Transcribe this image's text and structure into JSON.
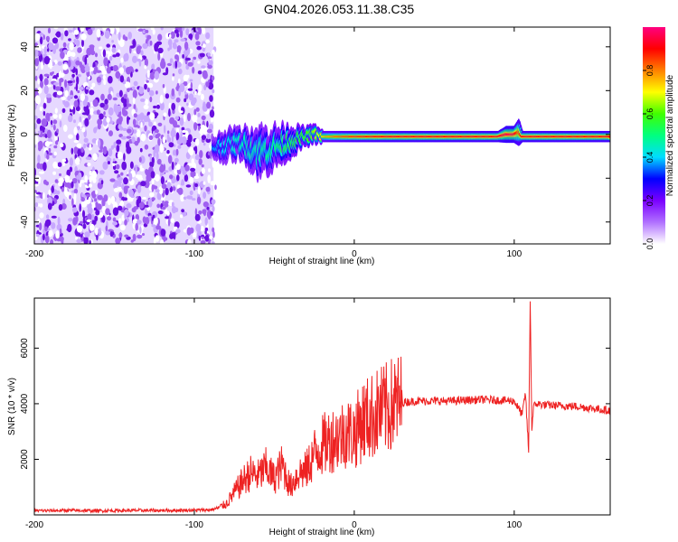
{
  "title": "GN04.2026.053.11.38.C35",
  "chart_data": [
    {
      "type": "heatmap",
      "name": "spectrogram",
      "xlabel": "Height of straight line (km)",
      "ylabel": "Frequency (Hz)",
      "xlim": [
        -200,
        160
      ],
      "ylim": [
        -50,
        49
      ],
      "x_ticks": [
        -200,
        -100,
        0,
        100
      ],
      "y_ticks": [
        -40,
        -20,
        0,
        20,
        40
      ],
      "grid": false,
      "noise_region_x": [
        -200,
        -88
      ],
      "signal_track": {
        "x": [
          -88,
          -80,
          -70,
          -60,
          -50,
          -40,
          -30,
          -25,
          -20,
          -10,
          0,
          20,
          40,
          60,
          80,
          90,
          95,
          100,
          103,
          105,
          120,
          160
        ],
        "freq": [
          -6,
          -5,
          -4,
          -8,
          -6,
          -3,
          -1,
          0,
          -1,
          -1,
          -1,
          -1,
          -1,
          -1,
          -1,
          -1,
          0,
          0,
          1,
          -1,
          -1,
          -1
        ],
        "spread": [
          4,
          5,
          5,
          8,
          7,
          5,
          3,
          3,
          2,
          2,
          2,
          2,
          2,
          2,
          2,
          2,
          3,
          3,
          5,
          2,
          2,
          2
        ],
        "amp": [
          0.3,
          0.35,
          0.4,
          0.4,
          0.45,
          0.5,
          0.55,
          0.6,
          0.7,
          0.8,
          0.85,
          0.9,
          0.9,
          0.9,
          0.9,
          0.9,
          0.95,
          0.95,
          0.8,
          0.9,
          0.9,
          0.9
        ]
      }
    },
    {
      "type": "line",
      "name": "snr",
      "xlabel": "Height of straight line (km)",
      "ylabel": "SNR (10 * v/v)",
      "xlim": [
        -200,
        160
      ],
      "ylim": [
        0,
        7800
      ],
      "x_ticks": [
        -200,
        -100,
        0,
        100
      ],
      "y_ticks": [
        2000,
        4000,
        6000
      ],
      "color": "#ee2222",
      "grid": false,
      "series": [
        {
          "name": "SNR",
          "x": [
            -200,
            -180,
            -160,
            -140,
            -120,
            -100,
            -90,
            -85,
            -80,
            -75,
            -70,
            -65,
            -60,
            -55,
            -50,
            -45,
            -40,
            -35,
            -30,
            -25,
            -20,
            -15,
            -10,
            -5,
            0,
            5,
            10,
            15,
            20,
            25,
            30,
            40,
            60,
            80,
            100,
            105,
            107,
            109,
            110,
            111,
            112,
            114,
            120,
            140,
            160
          ],
          "y": [
            150,
            160,
            150,
            160,
            160,
            170,
            180,
            250,
            400,
            800,
            1200,
            1500,
            1400,
            1700,
            1300,
            1800,
            1000,
            1500,
            1600,
            2200,
            2500,
            2700,
            2800,
            3000,
            2900,
            3400,
            3500,
            3700,
            3800,
            4000,
            4050,
            4100,
            4100,
            4150,
            4100,
            3600,
            4400,
            2300,
            7800,
            3000,
            3900,
            4000,
            3950,
            3900,
            3750
          ]
        }
      ]
    }
  ],
  "colorbar": {
    "label": "Normalized spectral amplitude",
    "range": [
      0,
      1
    ],
    "ticks": [
      0.0,
      0.2,
      0.4,
      0.6,
      0.8
    ],
    "tick_labels": [
      "0.0",
      "0.2",
      "0.4",
      "0.6",
      "0.8"
    ],
    "colors": [
      "#ffffff",
      "#b070ff",
      "#7a00ff",
      "#0000ff",
      "#00ddff",
      "#00ff80",
      "#40ff00",
      "#ffff00",
      "#ff8000",
      "#ff0000",
      "#ff0080"
    ]
  }
}
